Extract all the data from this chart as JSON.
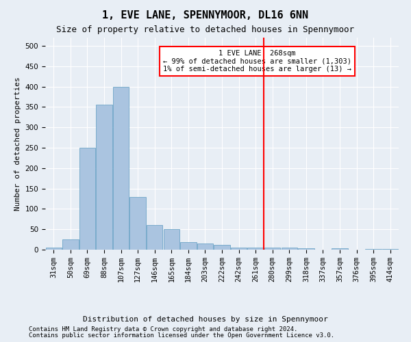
{
  "title": "1, EVE LANE, SPENNYMOOR, DL16 6NN",
  "subtitle": "Size of property relative to detached houses in Spennymoor",
  "xlabel": "Distribution of detached houses by size in Spennymoor",
  "ylabel": "Number of detached properties",
  "footer_line1": "Contains HM Land Registry data © Crown copyright and database right 2024.",
  "footer_line2": "Contains public sector information licensed under the Open Government Licence v3.0.",
  "bin_labels": [
    "31sqm",
    "50sqm",
    "69sqm",
    "88sqm",
    "107sqm",
    "127sqm",
    "146sqm",
    "165sqm",
    "184sqm",
    "203sqm",
    "222sqm",
    "242sqm",
    "261sqm",
    "280sqm",
    "299sqm",
    "318sqm",
    "337sqm",
    "357sqm",
    "376sqm",
    "395sqm",
    "414sqm"
  ],
  "bar_heights": [
    5,
    25,
    250,
    355,
    400,
    130,
    60,
    50,
    18,
    15,
    12,
    5,
    5,
    5,
    5,
    3,
    0,
    3,
    0,
    2,
    2
  ],
  "bar_color": "#aac4e0",
  "bar_edge_color": "#5a9abf",
  "vline_x": 12.5,
  "vline_color": "red",
  "annotation_line1": "1 EVE LANE: 268sqm",
  "annotation_line2": "← 99% of detached houses are smaller (1,303)",
  "annotation_line3": "1% of semi-detached houses are larger (13) →",
  "annotation_box_color": "white",
  "annotation_box_edge": "red",
  "ylim": [
    0,
    520
  ],
  "yticks": [
    0,
    50,
    100,
    150,
    200,
    250,
    300,
    350,
    400,
    450,
    500
  ],
  "background_color": "#e8eef5",
  "plot_bg_color": "#e8eef5",
  "title_fontsize": 11,
  "subtitle_fontsize": 9,
  "axis_label_fontsize": 8,
  "tick_fontsize": 7.5,
  "footer_fontsize": 6.5
}
